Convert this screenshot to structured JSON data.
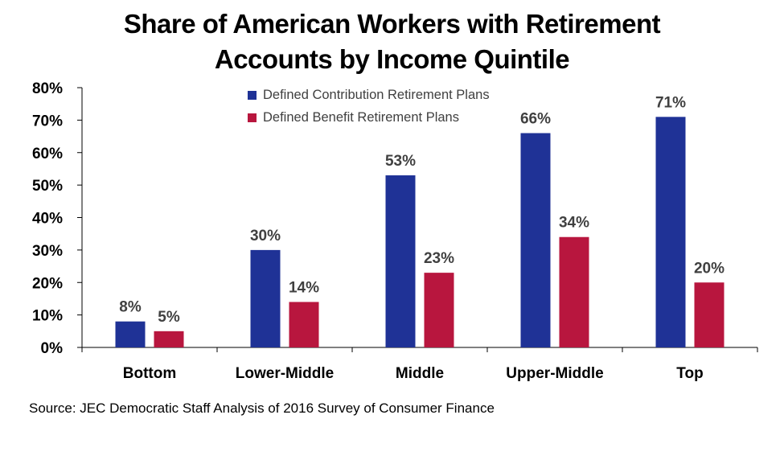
{
  "chart_data": {
    "type": "bar",
    "title_lines": [
      "Share of American Workers with Retirement",
      "Accounts by Income Quintile"
    ],
    "categories": [
      "Bottom",
      "Lower-Middle",
      "Middle",
      "Upper-Middle",
      "Top"
    ],
    "series": [
      {
        "name": "Defined Contribution Retirement Plans",
        "color": "#1f3296",
        "values": [
          8,
          30,
          53,
          66,
          71
        ],
        "data_labels": [
          "8%",
          "30%",
          "53%",
          "66%",
          "71%"
        ]
      },
      {
        "name": "Defined Benefit Retirement Plans",
        "color": "#b8163e",
        "values": [
          5,
          14,
          23,
          34,
          20
        ],
        "data_labels": [
          "5%",
          "14%",
          "23%",
          "34%",
          "20%"
        ]
      }
    ],
    "ylim": [
      0,
      80
    ],
    "yticks": [
      0,
      10,
      20,
      30,
      40,
      50,
      60,
      70,
      80
    ],
    "ytick_labels": [
      "0%",
      "10%",
      "20%",
      "30%",
      "40%",
      "50%",
      "60%",
      "70%",
      "80%"
    ],
    "grid": false,
    "legend_position": "top-left"
  },
  "source_text": "Source: JEC Democratic Staff Analysis of 2016 Survey of Consumer Finance"
}
